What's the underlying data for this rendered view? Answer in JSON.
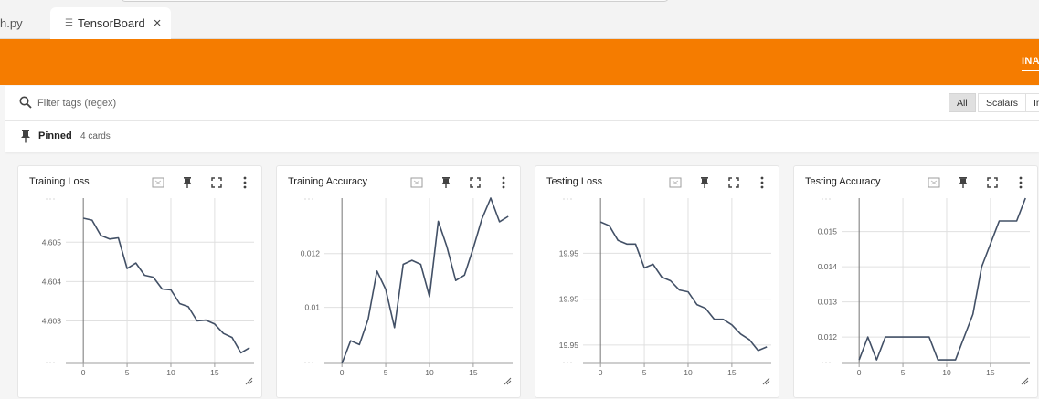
{
  "tabs": {
    "inactive_label": "h.py",
    "active_label": "TensorBoard",
    "close_glyph": "×"
  },
  "header": {
    "nav_label": "INACTIVE",
    "color": "#f57c00"
  },
  "filter": {
    "placeholder": "Filter tags (regex)"
  },
  "type_filter": {
    "all": "All",
    "scalars": "Scalars",
    "images": "Images"
  },
  "pinned": {
    "label": "Pinned",
    "count": "4 cards"
  },
  "icons": {
    "search": "search-icon",
    "pin": "pin-icon",
    "fit": "fit-domain-icon",
    "fullscreen": "fullscreen-icon",
    "more": "more-vert-icon",
    "resize": "resize-handle-icon"
  },
  "line_color": "#425066",
  "chart_data": [
    {
      "type": "line",
      "title": "Training Loss",
      "xlim": [
        -2,
        19.5
      ],
      "ylim": [
        4.60192,
        4.60612
      ],
      "xticks": [
        0,
        5,
        10,
        15
      ],
      "xtick_labels": [
        "0",
        "5",
        "10",
        "15"
      ],
      "yticks": [
        4.603,
        4.604,
        4.605
      ],
      "ytick_labels": [
        "4.603",
        "4.604",
        "4.605"
      ],
      "series": [
        {
          "values": [
            [
              0,
              4.60561
            ],
            [
              1,
              4.60556
            ],
            [
              2,
              4.60517
            ],
            [
              3,
              4.60508
            ],
            [
              4,
              4.60511
            ],
            [
              5,
              4.60433
            ],
            [
              6,
              4.60447
            ],
            [
              7,
              4.60416
            ],
            [
              8,
              4.60411
            ],
            [
              9,
              4.60381
            ],
            [
              10,
              4.60379
            ],
            [
              11,
              4.60344
            ],
            [
              12,
              4.60336
            ],
            [
              13,
              4.603
            ],
            [
              14,
              4.60302
            ],
            [
              15,
              4.60292
            ],
            [
              16,
              4.60268
            ],
            [
              17,
              4.60258
            ],
            [
              18,
              4.60219
            ],
            [
              19,
              4.60232
            ]
          ]
        }
      ]
    },
    {
      "type": "line",
      "title": "Training Accuracy",
      "xlim": [
        -2,
        19.5
      ],
      "ylim": [
        0.00792,
        0.01406
      ],
      "xticks": [
        0,
        5,
        10,
        15
      ],
      "xtick_labels": [
        "0",
        "5",
        "10",
        "15"
      ],
      "yticks": [
        0.01,
        0.012
      ],
      "ytick_labels": [
        "0.01",
        "0.012"
      ],
      "series": [
        {
          "values": [
            [
              0,
              0.00792
            ],
            [
              1,
              0.00876
            ],
            [
              2,
              0.00862
            ],
            [
              3,
              0.00957
            ],
            [
              4,
              0.01135
            ],
            [
              5,
              0.01067
            ],
            [
              6,
              0.00925
            ],
            [
              7,
              0.0116
            ],
            [
              8,
              0.01175
            ],
            [
              9,
              0.0116
            ],
            [
              10,
              0.0104
            ],
            [
              11,
              0.0132
            ],
            [
              12,
              0.01225
            ],
            [
              13,
              0.011
            ],
            [
              14,
              0.0112
            ],
            [
              15,
              0.0122
            ],
            [
              16,
              0.0133
            ],
            [
              17,
              0.01406
            ],
            [
              18,
              0.01318
            ],
            [
              19,
              0.01338
            ]
          ]
        }
      ]
    },
    {
      "type": "line",
      "title": "Testing Loss",
      "xlim": [
        -2,
        19.5
      ],
      "ylim": [
        19.9465,
        19.9555
      ],
      "xticks": [
        0,
        5,
        10,
        15
      ],
      "xtick_labels": [
        "0",
        "5",
        "10",
        "15"
      ],
      "yticks": [
        19.9475,
        19.95,
        19.9525
      ],
      "ytick_labels": [
        "19.95",
        "19.95",
        "19.95"
      ],
      "series": [
        {
          "values": [
            [
              0,
              19.9542
            ],
            [
              1,
              19.954
            ],
            [
              2,
              19.9532
            ],
            [
              3,
              19.953
            ],
            [
              4,
              19.953
            ],
            [
              5,
              19.9517
            ],
            [
              6,
              19.9519
            ],
            [
              7,
              19.9512
            ],
            [
              8,
              19.951
            ],
            [
              9,
              19.9505
            ],
            [
              10,
              19.9504
            ],
            [
              11,
              19.9497
            ],
            [
              12,
              19.9495
            ],
            [
              13,
              19.9489
            ],
            [
              14,
              19.9489
            ],
            [
              15,
              19.9486
            ],
            [
              16,
              19.9481
            ],
            [
              17,
              19.9478
            ],
            [
              18,
              19.9472
            ],
            [
              19,
              19.9474
            ]
          ]
        }
      ]
    },
    {
      "type": "line",
      "title": "Testing Accuracy",
      "xlim": [
        -2,
        19.5
      ],
      "ylim": [
        0.01125,
        0.01595
      ],
      "xticks": [
        0,
        5,
        10,
        15
      ],
      "xtick_labels": [
        "0",
        "5",
        "10",
        "15"
      ],
      "yticks": [
        0.012,
        0.013,
        0.014,
        0.015
      ],
      "ytick_labels": [
        "0.012",
        "0.013",
        "0.014",
        "0.015"
      ],
      "series": [
        {
          "values": [
            [
              0,
              0.01135
            ],
            [
              1,
              0.012
            ],
            [
              2,
              0.01135
            ],
            [
              3,
              0.012
            ],
            [
              4,
              0.012
            ],
            [
              5,
              0.012
            ],
            [
              6,
              0.012
            ],
            [
              7,
              0.012
            ],
            [
              8,
              0.012
            ],
            [
              9,
              0.01135
            ],
            [
              10,
              0.01135
            ],
            [
              11,
              0.01135
            ],
            [
              12,
              0.012
            ],
            [
              13,
              0.01265
            ],
            [
              14,
              0.014
            ],
            [
              15,
              0.01465
            ],
            [
              16,
              0.0153
            ],
            [
              17,
              0.0153
            ],
            [
              18,
              0.0153
            ],
            [
              19,
              0.01595
            ]
          ]
        }
      ]
    }
  ]
}
